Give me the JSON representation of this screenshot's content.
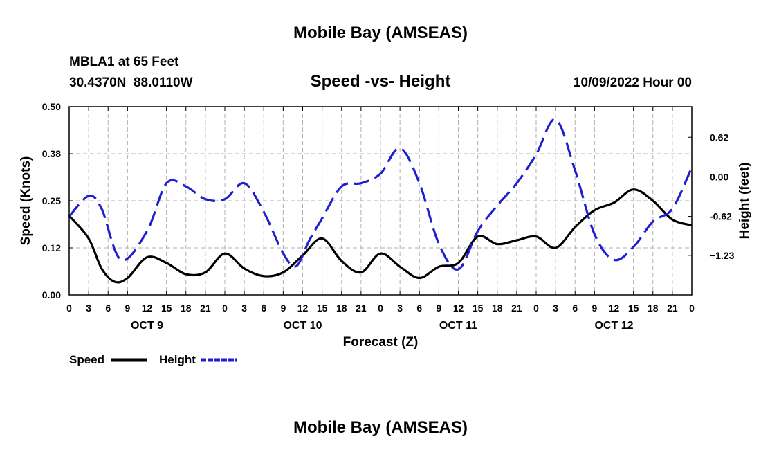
{
  "chart_data": {
    "type": "line",
    "title": "Mobile Bay (AMSEAS)",
    "station": "MBLA1 at 65 Feet",
    "location": "30.4370N  88.0110W",
    "subtitle": "Speed -vs- Height",
    "datetime": "10/09/2022 Hour 00",
    "footer_title": "Mobile Bay (AMSEAS)",
    "xlabel": "Forecast (Z)",
    "ylabel_left": "Speed (Knots)",
    "ylabel_right": "Height (feet)",
    "x_ticks": [
      {
        "h": 0,
        "label": "0"
      },
      {
        "h": 3,
        "label": "3"
      },
      {
        "h": 6,
        "label": "6"
      },
      {
        "h": 9,
        "label": "9"
      },
      {
        "h": 12,
        "label": "12"
      },
      {
        "h": 15,
        "label": "15"
      },
      {
        "h": 18,
        "label": "18"
      },
      {
        "h": 21,
        "label": "21"
      },
      {
        "h": 24,
        "label": "0"
      },
      {
        "h": 27,
        "label": "3"
      },
      {
        "h": 30,
        "label": "6"
      },
      {
        "h": 33,
        "label": "9"
      },
      {
        "h": 36,
        "label": "12"
      },
      {
        "h": 39,
        "label": "15"
      },
      {
        "h": 42,
        "label": "18"
      },
      {
        "h": 45,
        "label": "21"
      },
      {
        "h": 48,
        "label": "0"
      },
      {
        "h": 51,
        "label": "3"
      },
      {
        "h": 54,
        "label": "6"
      },
      {
        "h": 57,
        "label": "9"
      },
      {
        "h": 60,
        "label": "12"
      },
      {
        "h": 63,
        "label": "15"
      },
      {
        "h": 66,
        "label": "18"
      },
      {
        "h": 69,
        "label": "21"
      },
      {
        "h": 72,
        "label": "0"
      },
      {
        "h": 75,
        "label": "3"
      },
      {
        "h": 78,
        "label": "6"
      },
      {
        "h": 81,
        "label": "9"
      },
      {
        "h": 84,
        "label": "12"
      },
      {
        "h": 87,
        "label": "15"
      },
      {
        "h": 90,
        "label": "18"
      },
      {
        "h": 93,
        "label": "21"
      },
      {
        "h": 96,
        "label": "0"
      }
    ],
    "day_labels": [
      {
        "h": 12,
        "label": "OCT 9"
      },
      {
        "h": 36,
        "label": "OCT 10"
      },
      {
        "h": 60,
        "label": "OCT 11"
      },
      {
        "h": 84,
        "label": "OCT 12"
      }
    ],
    "xlim": [
      0,
      96
    ],
    "ylim_left": [
      0,
      0.5
    ],
    "yticks_left": [
      {
        "v": 0.0,
        "label": "0.00"
      },
      {
        "v": 0.125,
        "label": "0.12"
      },
      {
        "v": 0.25,
        "label": "0.25"
      },
      {
        "v": 0.375,
        "label": "0.38"
      },
      {
        "v": 0.5,
        "label": "0.50"
      }
    ],
    "ylim_right": [
      -1.85,
      1.1
    ],
    "yticks_right": [
      {
        "v": 0.62,
        "label": "0.62"
      },
      {
        "v": 0.0,
        "label": "0.00"
      },
      {
        "v": -0.62,
        "label": "-0.62"
      },
      {
        "v": -1.23,
        "label": "−1.23"
      }
    ],
    "grid": true,
    "legend_placement": "bottom-left",
    "series": [
      {
        "name": "Speed",
        "axis": "left",
        "color": "#000000",
        "style": "solid",
        "x": [
          0,
          3,
          5,
          7,
          9,
          12,
          15,
          18,
          21,
          24,
          27,
          30,
          33,
          36,
          39,
          42,
          45,
          48,
          51,
          54,
          57,
          60,
          63,
          66,
          69,
          72,
          75,
          78,
          81,
          84,
          87,
          90,
          93,
          96
        ],
        "y": [
          0.21,
          0.15,
          0.07,
          0.035,
          0.045,
          0.1,
          0.085,
          0.055,
          0.06,
          0.11,
          0.07,
          0.05,
          0.06,
          0.105,
          0.15,
          0.09,
          0.06,
          0.11,
          0.075,
          0.045,
          0.075,
          0.085,
          0.155,
          0.135,
          0.145,
          0.155,
          0.125,
          0.18,
          0.225,
          0.245,
          0.28,
          0.25,
          0.2,
          0.185
        ]
      },
      {
        "name": "Height",
        "axis": "right",
        "color": "#1f1fd0",
        "style": "dashed",
        "x": [
          0,
          3,
          5,
          8,
          12,
          15,
          18,
          21,
          24,
          27,
          30,
          33,
          35,
          37,
          39,
          42,
          45,
          48,
          51,
          54,
          57,
          60,
          63,
          66,
          69,
          72,
          75,
          78,
          81,
          84,
          87,
          90,
          93,
          96
        ],
        "y": [
          -0.62,
          -0.3,
          -0.5,
          -1.3,
          -0.85,
          -0.1,
          -0.15,
          -0.35,
          -0.35,
          -0.1,
          -0.55,
          -1.2,
          -1.4,
          -1.0,
          -0.65,
          -0.15,
          -0.1,
          0.05,
          0.45,
          -0.1,
          -1.05,
          -1.45,
          -0.85,
          -0.45,
          -0.1,
          0.35,
          0.9,
          0.1,
          -0.9,
          -1.3,
          -1.1,
          -0.7,
          -0.5,
          0.15
        ]
      }
    ]
  }
}
